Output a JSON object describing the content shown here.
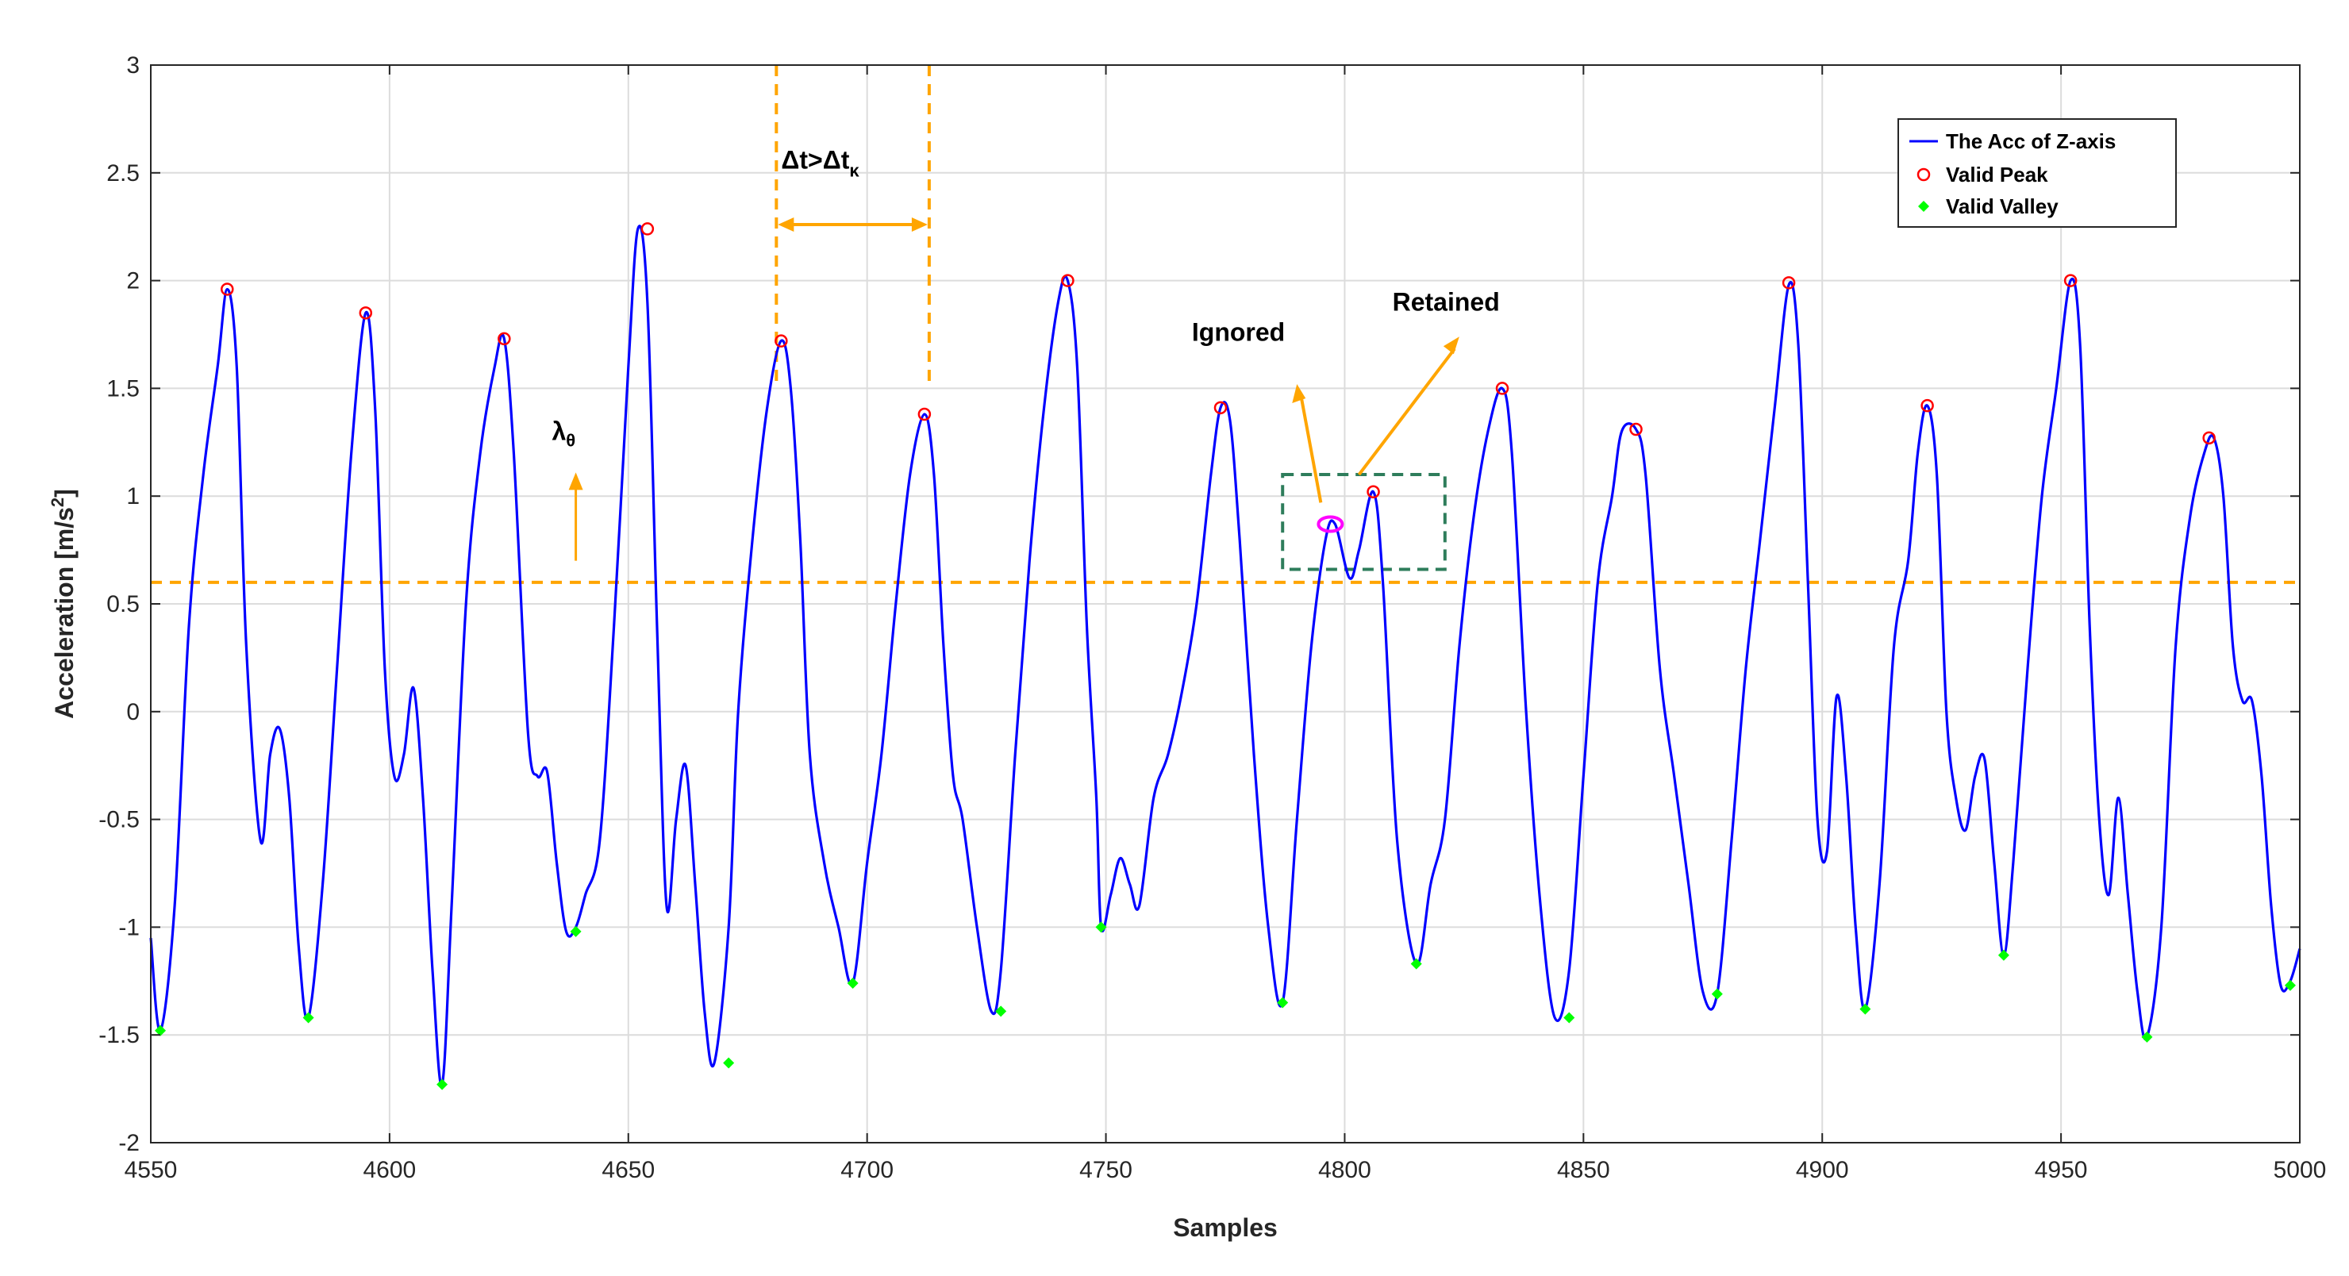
{
  "chart_data": {
    "type": "line",
    "xlabel": "Samples",
    "ylabel_main": "Acceleration [m/s",
    "ylabel_sup": "2",
    "ylabel_end": "]",
    "xlim": [
      4550,
      5000
    ],
    "ylim": [
      -2,
      3
    ],
    "xticks": [
      4550,
      4600,
      4650,
      4700,
      4750,
      4800,
      4850,
      4900,
      4950,
      5000
    ],
    "yticks": [
      -2,
      -1.5,
      -1,
      -0.5,
      0,
      0.5,
      1,
      1.5,
      2,
      2.5,
      3
    ],
    "xtick_labels": [
      "4550",
      "4600",
      "4650",
      "4700",
      "4750",
      "4800",
      "4850",
      "4900",
      "4950",
      "5000"
    ],
    "ytick_labels": [
      "-2",
      "-1.5",
      "-1",
      "-0.5",
      "0",
      "0.5",
      "1",
      "1.5",
      "2",
      "2.5",
      "3"
    ],
    "grid": true,
    "legend_position": "top-right",
    "series": [
      {
        "name": "The Acc of Z-axis",
        "color": "#0000ff",
        "x": [
          4550,
          4552,
          4555,
          4558,
          4561,
          4564,
          4566,
          4568,
          4570,
          4573,
          4575,
          4577,
          4579,
          4581,
          4583,
          4586,
          4589,
          4592,
          4595,
          4597,
          4599,
          4601,
          4603,
          4605,
          4607,
          4609,
          4611,
          4613,
          4616,
          4619,
          4622,
          4624,
          4626,
          4629,
          4631,
          4633,
          4635,
          4637,
          4639,
          4641,
          4644,
          4647,
          4650,
          4652,
          4654,
          4656,
          4658,
          4660,
          4662,
          4664,
          4666,
          4668,
          4671,
          4673,
          4676,
          4679,
          4682,
          4684,
          4686,
          4688,
          4691,
          4694,
          4697,
          4700,
          4703,
          4706,
          4709,
          4712,
          4714,
          4716,
          4718,
          4720,
          4723,
          4726,
          4728,
          4731,
          4734,
          4737,
          4740,
          4742,
          4744,
          4746,
          4748,
          4749,
          4751,
          4753,
          4755,
          4757,
          4760,
          4763,
          4766,
          4769,
          4772,
          4774,
          4776,
          4778,
          4781,
          4784,
          4787,
          4790,
          4793,
          4796,
          4798,
          4801,
          4803,
          4806,
          4808,
          4811,
          4815,
          4818,
          4821,
          4824,
          4827,
          4830,
          4833,
          4835,
          4838,
          4841,
          4844,
          4847,
          4850,
          4853,
          4856,
          4858,
          4861,
          4863,
          4866,
          4869,
          4872,
          4875,
          4878,
          4881,
          4884,
          4887,
          4890,
          4893,
          4895,
          4897,
          4899,
          4901,
          4903,
          4905,
          4907,
          4909,
          4912,
          4915,
          4918,
          4920,
          4922,
          4924,
          4926,
          4928,
          4930,
          4932,
          4934,
          4936,
          4938,
          4940,
          4943,
          4946,
          4949,
          4952,
          4954,
          4956,
          4958,
          4960,
          4962,
          4964,
          4966,
          4968,
          4971,
          4974,
          4977,
          4980,
          4982,
          4984,
          4986,
          4988,
          4990,
          4992,
          4994,
          4996,
          4998,
          5000
        ],
        "y": [
          -1.05,
          -1.48,
          -0.9,
          0.4,
          1.1,
          1.6,
          1.96,
          1.6,
          0.3,
          -0.6,
          -0.2,
          -0.08,
          -0.4,
          -1.1,
          -1.42,
          -0.8,
          0.2,
          1.2,
          1.85,
          1.4,
          0.2,
          -0.3,
          -0.2,
          0.11,
          -0.4,
          -1.2,
          -1.73,
          -0.9,
          0.5,
          1.2,
          1.6,
          1.73,
          1.2,
          -0.1,
          -0.3,
          -0.28,
          -0.7,
          -1.02,
          -1.0,
          -0.85,
          -0.6,
          0.4,
          1.6,
          2.24,
          1.9,
          0.4,
          -0.9,
          -0.5,
          -0.25,
          -0.8,
          -1.4,
          -1.63,
          -1.0,
          0.0,
          0.8,
          1.4,
          1.72,
          1.5,
          0.8,
          -0.2,
          -0.7,
          -1.0,
          -1.26,
          -0.7,
          -0.2,
          0.5,
          1.1,
          1.38,
          1.1,
          0.3,
          -0.3,
          -0.5,
          -1.0,
          -1.39,
          -1.2,
          -0.2,
          0.7,
          1.4,
          1.9,
          2.0,
          1.6,
          0.4,
          -0.4,
          -1.0,
          -0.85,
          -0.68,
          -0.8,
          -0.9,
          -0.4,
          -0.2,
          0.1,
          0.5,
          1.1,
          1.41,
          1.35,
          0.8,
          -0.2,
          -1.0,
          -1.35,
          -0.5,
          0.3,
          0.8,
          0.87,
          0.62,
          0.75,
          1.02,
          0.6,
          -0.6,
          -1.17,
          -0.8,
          -0.5,
          0.3,
          0.9,
          1.3,
          1.5,
          1.2,
          0.0,
          -0.9,
          -1.42,
          -1.2,
          -0.3,
          0.6,
          1.0,
          1.3,
          1.31,
          1.1,
          0.2,
          -0.3,
          -0.8,
          -1.3,
          -1.31,
          -0.6,
          0.2,
          0.8,
          1.4,
          1.98,
          1.7,
          0.6,
          -0.5,
          -0.65,
          0.07,
          -0.3,
          -1.0,
          -1.38,
          -0.8,
          0.3,
          0.7,
          1.2,
          1.42,
          1.1,
          0.0,
          -0.4,
          -0.55,
          -0.3,
          -0.22,
          -0.7,
          -1.13,
          -0.7,
          0.2,
          1.0,
          1.5,
          2.0,
          1.7,
          0.4,
          -0.5,
          -0.85,
          -0.4,
          -0.85,
          -1.3,
          -1.51,
          -1.0,
          0.3,
          0.9,
          1.2,
          1.27,
          1.0,
          0.3,
          0.05,
          0.05,
          -0.3,
          -0.9,
          -1.27,
          -1.25,
          -1.1
        ]
      }
    ],
    "peaks": {
      "name": "Valid Peak",
      "color": "#ff0000",
      "x": [
        4566,
        4595,
        4624,
        4654,
        4682,
        4712,
        4742,
        4774,
        4806,
        4833,
        4861,
        4893,
        4922,
        4952,
        4981
      ],
      "y": [
        1.96,
        1.85,
        1.73,
        2.24,
        1.72,
        1.38,
        2.0,
        1.41,
        1.02,
        1.5,
        1.31,
        1.99,
        1.42,
        2.0,
        1.27
      ]
    },
    "valleys": {
      "name": "Valid Valley",
      "color": "#00ff00",
      "x": [
        4552,
        4583,
        4611,
        4639,
        4671,
        4697,
        4728,
        4749,
        4787,
        4815,
        4847,
        4878,
        4909,
        4938,
        4968,
        4998
      ],
      "y": [
        -1.48,
        -1.42,
        -1.73,
        -1.02,
        -1.63,
        -1.26,
        -1.39,
        -1.0,
        -1.35,
        -1.17,
        -1.42,
        -1.31,
        -1.38,
        -1.13,
        -1.51,
        -1.27
      ]
    },
    "threshold": {
      "value": 0.6,
      "label": "λ",
      "label_sub": "θ",
      "color": "#ffa500"
    },
    "interval_lines": {
      "x": [
        4681,
        4713
      ],
      "label": "Δt>Δt",
      "label_sub": "κ",
      "color": "#ffa500"
    },
    "ignored_marker": {
      "x": 4797,
      "y": 0.87,
      "color": "#ff00ff"
    },
    "annotations": {
      "ignored": "Ignored",
      "retained": "Retained"
    },
    "highlight_box": {
      "x": [
        4787,
        4821
      ],
      "y": [
        0.66,
        1.1
      ],
      "color": "#2e7d5b"
    },
    "legend_entries": [
      "The Acc of Z-axis",
      "Valid Peak",
      "Valid Valley"
    ]
  }
}
